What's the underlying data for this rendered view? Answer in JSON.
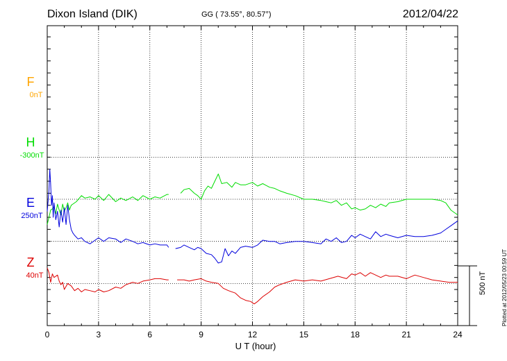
{
  "header": {
    "station": "Dixon Island (DIK)",
    "coords": "GG ( 73.55°,  80.57°)",
    "date": "2012/04/22"
  },
  "channels": [
    {
      "key": "F",
      "name": "F",
      "offset": "0nT",
      "color": "#ffa500"
    },
    {
      "key": "H",
      "name": "H",
      "offset": "-300nT",
      "color": "#00dd00"
    },
    {
      "key": "E",
      "name": "E",
      "offset": "250nT",
      "color": "#0000dd"
    },
    {
      "key": "Z",
      "name": "Z",
      "offset": "40nT",
      "color": "#dd0000"
    }
  ],
  "scale_label": "500 nT",
  "plotted_note": "Plotted at 2012/05/23 00:59 UT",
  "chart_data": {
    "type": "line",
    "title": "Dixon Island (DIK)",
    "subtitle": "GG ( 73.55°,  80.57°)",
    "xlabel": "U T (hour)",
    "ylabel": "",
    "xlim": [
      0,
      24
    ],
    "xticks": [
      0,
      3,
      6,
      9,
      12,
      15,
      18,
      21,
      24
    ],
    "grid": true,
    "scale_bar_nT": 500,
    "units": "nT",
    "baselines_nT": {
      "F": 1000,
      "H": 650,
      "E": 300,
      "Z": -50
    },
    "series": [
      {
        "name": "H",
        "color": "#00dd00",
        "gaps_after_hour": [
          7.1
        ],
        "x": [
          0.0,
          0.1,
          0.2,
          0.3,
          0.4,
          0.5,
          0.6,
          0.7,
          0.8,
          0.9,
          1.0,
          1.1,
          1.2,
          1.3,
          1.4,
          1.5,
          1.7,
          2.0,
          2.2,
          2.5,
          2.8,
          3.0,
          3.3,
          3.6,
          4.0,
          4.3,
          4.6,
          5.0,
          5.3,
          5.6,
          6.0,
          6.3,
          6.6,
          7.0,
          7.1,
          7.8,
          8.0,
          8.3,
          8.6,
          8.8,
          9.0,
          9.2,
          9.4,
          9.6,
          9.8,
          10.0,
          10.2,
          10.5,
          10.8,
          11.0,
          11.3,
          11.6,
          12.0,
          12.3,
          12.6,
          13.0,
          13.3,
          13.6,
          14.0,
          14.5,
          15.0,
          15.5,
          16.0,
          16.3,
          16.6,
          16.9,
          17.2,
          17.5,
          17.8,
          18.0,
          18.3,
          18.6,
          18.9,
          19.2,
          19.5,
          19.8,
          20.0,
          20.5,
          21.0,
          21.5,
          22.0,
          22.5,
          23.0,
          23.3,
          23.6,
          23.8,
          24.0
        ],
        "y": [
          440,
          500,
          560,
          570,
          590,
          530,
          610,
          560,
          520,
          610,
          550,
          580,
          620,
          560,
          600,
          610,
          630,
          680,
          660,
          670,
          650,
          680,
          640,
          690,
          630,
          660,
          640,
          670,
          640,
          680,
          650,
          670,
          660,
          690,
          690,
          700,
          730,
          740,
          700,
          680,
          650,
          720,
          760,
          740,
          800,
          860,
          780,
          790,
          750,
          790,
          770,
          770,
          790,
          760,
          780,
          750,
          740,
          720,
          700,
          680,
          650,
          650,
          640,
          630,
          620,
          640,
          600,
          620,
          570,
          580,
          560,
          570,
          600,
          580,
          610,
          590,
          620,
          630,
          650,
          650,
          650,
          650,
          640,
          620,
          560,
          540,
          520
        ]
      },
      {
        "name": "E",
        "color": "#0000dd",
        "gaps_after_hour": [
          7.1
        ],
        "x": [
          0.0,
          0.1,
          0.15,
          0.2,
          0.25,
          0.3,
          0.35,
          0.4,
          0.5,
          0.6,
          0.7,
          0.8,
          0.9,
          1.0,
          1.1,
          1.2,
          1.3,
          1.4,
          1.5,
          1.6,
          1.8,
          2.0,
          2.2,
          2.5,
          2.8,
          3.0,
          3.3,
          3.6,
          4.0,
          4.3,
          4.6,
          5.0,
          5.3,
          5.6,
          6.0,
          6.3,
          6.6,
          7.0,
          7.1,
          7.5,
          7.8,
          8.0,
          8.3,
          8.6,
          8.8,
          9.0,
          9.3,
          9.6,
          9.8,
          10.0,
          10.2,
          10.4,
          10.6,
          10.8,
          11.0,
          11.3,
          11.6,
          12.0,
          12.3,
          12.6,
          13.0,
          13.3,
          13.6,
          14.0,
          14.5,
          15.0,
          15.5,
          16.0,
          16.3,
          16.6,
          16.9,
          17.2,
          17.5,
          17.8,
          18.0,
          18.3,
          18.6,
          18.9,
          19.2,
          19.5,
          19.8,
          20.0,
          20.5,
          21.0,
          21.5,
          22.0,
          22.5,
          23.0,
          23.3,
          23.6,
          23.8,
          24.0
        ],
        "y": [
          550,
          720,
          900,
          780,
          600,
          680,
          500,
          620,
          480,
          550,
          420,
          560,
          460,
          580,
          440,
          600,
          480,
          400,
          370,
          350,
          320,
          330,
          300,
          280,
          310,
          330,
          300,
          330,
          320,
          290,
          320,
          300,
          280,
          290,
          270,
          280,
          270,
          270,
          250,
          240,
          250,
          270,
          250,
          230,
          250,
          240,
          200,
          190,
          160,
          120,
          130,
          240,
          180,
          220,
          200,
          250,
          260,
          250,
          270,
          310,
          300,
          300,
          280,
          290,
          300,
          300,
          290,
          280,
          320,
          300,
          330,
          290,
          300,
          350,
          330,
          360,
          340,
          320,
          380,
          340,
          360,
          350,
          330,
          350,
          340,
          340,
          350,
          370,
          400,
          430,
          450,
          470
        ]
      },
      {
        "name": "Z",
        "color": "#dd0000",
        "gaps_after_hour": [
          7.1
        ],
        "x": [
          0.0,
          0.1,
          0.2,
          0.3,
          0.4,
          0.5,
          0.6,
          0.7,
          0.8,
          0.9,
          1.0,
          1.2,
          1.4,
          1.6,
          1.8,
          2.0,
          2.2,
          2.5,
          2.8,
          3.0,
          3.3,
          3.6,
          4.0,
          4.3,
          4.6,
          5.0,
          5.3,
          5.6,
          6.0,
          6.3,
          6.6,
          7.0,
          7.1,
          7.6,
          8.0,
          8.3,
          8.6,
          9.0,
          9.3,
          9.6,
          10.0,
          10.3,
          10.6,
          11.0,
          11.3,
          11.6,
          11.9,
          12.1,
          12.3,
          12.6,
          13.0,
          13.3,
          13.6,
          14.0,
          14.5,
          15.0,
          15.5,
          16.0,
          16.5,
          17.0,
          17.5,
          17.8,
          18.0,
          18.3,
          18.6,
          18.9,
          19.2,
          19.5,
          19.8,
          20.0,
          20.5,
          21.0,
          21.5,
          22.0,
          22.5,
          23.0,
          23.5,
          24.0
        ],
        "y": [
          80,
          40,
          -40,
          30,
          0,
          10,
          20,
          -30,
          -60,
          -40,
          -100,
          -50,
          -70,
          -110,
          -90,
          -120,
          -100,
          -110,
          -120,
          -100,
          -120,
          -110,
          -80,
          -90,
          -60,
          -40,
          -50,
          -30,
          -20,
          -10,
          -10,
          -20,
          -20,
          -20,
          -20,
          -30,
          -20,
          -10,
          -30,
          -40,
          -50,
          -90,
          -110,
          -130,
          -170,
          -190,
          -200,
          -220,
          -200,
          -160,
          -120,
          -80,
          -60,
          -40,
          -20,
          -30,
          -20,
          -30,
          -10,
          10,
          -10,
          30,
          20,
          40,
          10,
          40,
          20,
          0,
          20,
          10,
          10,
          -10,
          20,
          0,
          -20,
          -30,
          -40,
          -40
        ]
      }
    ]
  }
}
